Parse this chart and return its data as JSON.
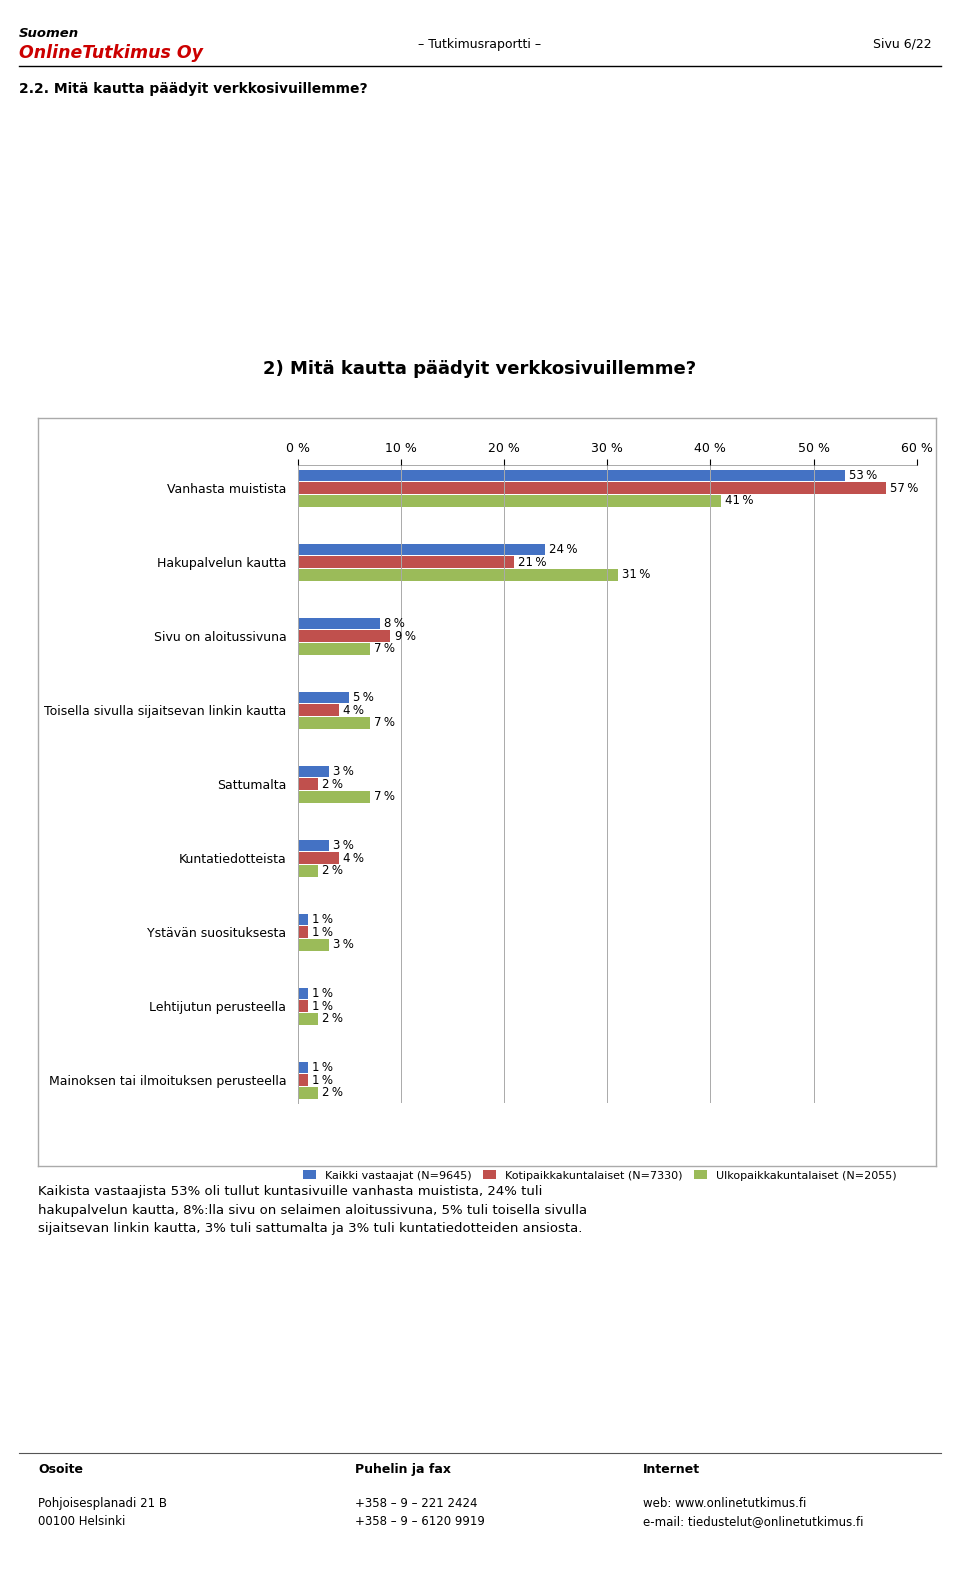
{
  "title_inner": "2) Mitä kautta päädyit verkkosivuillemme?",
  "header_title": "2.2. Mitä kautta päädyit verkkosivuillemme?",
  "report_label": "– Tutkimusraportti –",
  "page_label": "Sivu 6/22",
  "categories": [
    "Vanhasta muistista",
    "Hakupalvelun kautta",
    "Sivu on aloitussivuna",
    "Toisella sivulla sijaitsevan linkin kautta",
    "Sattumalta",
    "Kuntatiedotteista",
    "Ystävän suosituksesta",
    "Lehtijutun perusteella",
    "Mainoksen tai ilmoituksen perusteella"
  ],
  "series": {
    "Kaikki vastaajat (N=9645)": [
      53,
      24,
      8,
      5,
      3,
      3,
      1,
      1,
      1
    ],
    "Kotipaikkakuntalaiset (N=7330)": [
      57,
      21,
      9,
      4,
      2,
      4,
      1,
      1,
      1
    ],
    "Ulkopaikkakuntalaiset (N=2055)": [
      41,
      31,
      7,
      7,
      7,
      2,
      3,
      2,
      2
    ]
  },
  "colors": {
    "Kaikki vastaajat (N=9645)": "#4472C4",
    "Kotipaikkakuntalaiset (N=7330)": "#C0504D",
    "Ulkopaikkakuntalaiset (N=2055)": "#9BBB59"
  },
  "xlim": [
    0,
    60
  ],
  "xticks": [
    0,
    10,
    20,
    30,
    40,
    50,
    60
  ],
  "background_color": "#FFFFFF",
  "footer_text": "Kaikista vastaajista 53% oli tullut kuntasivuille vanhasta muistista, 24% tuli\nhakupalvelun kautta, 8%:lla sivu on selaimen aloitussivuna, 5% tuli toisella sivulla\nsijaitsevan linkin kautta, 3% tuli sattumalta ja 3% tuli kuntatiedotteiden ansiosta.",
  "address_label": "Osoite",
  "address_value": "Pohjoisesplanadi 21 B\n00100 Helsinki",
  "phone_label": "Puhelin ja fax",
  "phone_value": "+358 – 9 – 221 2424\n+358 – 9 – 6120 9919",
  "internet_label": "Internet",
  "internet_value": "web: www.onlinetutkimus.fi\ne-mail: tiedustelut@onlinetutkimus.fi"
}
